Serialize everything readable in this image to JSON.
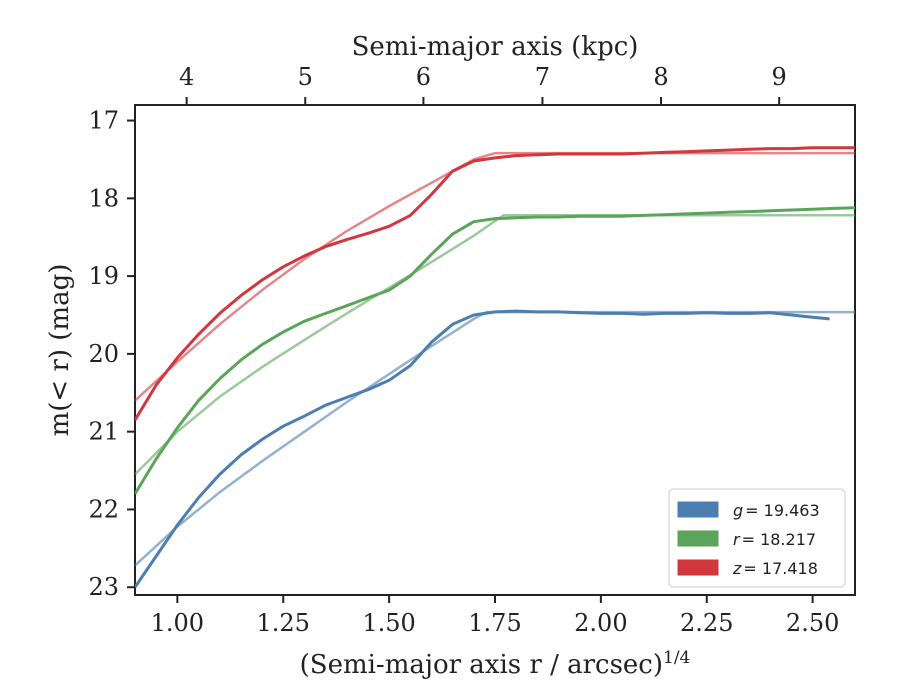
{
  "chart_data": {
    "type": "line",
    "xlabel_bottom": "(Semi-major axis r / arcsec)",
    "xlabel_bottom_exponent": "1/4",
    "xlabel_top": "Semi-major axis (kpc)",
    "ylabel": "m(< r) (mag)",
    "xlim": [
      0.9,
      2.6
    ],
    "ylim": [
      23.1,
      16.8
    ],
    "y_inverted": true,
    "grid": false,
    "legend_position": "lower-right",
    "x_ticks_bottom": [
      "1.00",
      "1.25",
      "1.50",
      "1.75",
      "2.00",
      "2.25",
      "2.50"
    ],
    "x_ticks_bottom_values": [
      1.0,
      1.25,
      1.5,
      1.75,
      2.0,
      2.25,
      2.5
    ],
    "x_ticks_top": [
      "4",
      "5",
      "6",
      "7",
      "8",
      "9"
    ],
    "x_ticks_top_values": [
      1.022,
      1.302,
      1.581,
      1.862,
      2.142,
      2.421
    ],
    "y_ticks": [
      "17",
      "18",
      "19",
      "20",
      "21",
      "22",
      "23"
    ],
    "y_ticks_values": [
      17,
      18,
      19,
      20,
      21,
      22,
      23
    ],
    "series": [
      {
        "name": "g = 19.463",
        "legend_var": "g",
        "legend_val": "= 19.463",
        "color": "#4C7FB0",
        "profile_x": [
          0.9,
          0.95,
          1.0,
          1.05,
          1.1,
          1.15,
          1.2,
          1.25,
          1.3,
          1.35,
          1.4,
          1.45,
          1.5,
          1.55,
          1.6,
          1.65,
          1.7,
          1.75,
          1.8,
          1.85,
          1.9,
          1.95,
          2.0,
          2.05,
          2.1,
          2.15,
          2.2,
          2.25,
          2.3,
          2.35,
          2.4,
          2.45,
          2.5,
          2.54
        ],
        "profile_y": [
          23.0,
          22.6,
          22.2,
          21.85,
          21.55,
          21.3,
          21.1,
          20.93,
          20.8,
          20.66,
          20.56,
          20.46,
          20.34,
          20.15,
          19.85,
          19.62,
          19.5,
          19.46,
          19.45,
          19.46,
          19.46,
          19.47,
          19.48,
          19.48,
          19.49,
          19.48,
          19.48,
          19.47,
          19.48,
          19.48,
          19.47,
          19.5,
          19.53,
          19.55
        ],
        "fit_x": [
          0.9,
          1.0,
          1.1,
          1.2,
          1.3,
          1.4,
          1.5,
          1.6,
          1.7,
          1.73,
          2.6
        ],
        "fit_y": [
          22.72,
          22.22,
          21.78,
          21.38,
          21.0,
          20.62,
          20.26,
          19.9,
          19.55,
          19.463,
          19.463
        ]
      },
      {
        "name": "r = 18.217",
        "legend_var": "r",
        "legend_val": "= 18.217",
        "color": "#5AA55A",
        "profile_x": [
          0.9,
          0.95,
          1.0,
          1.05,
          1.1,
          1.15,
          1.2,
          1.25,
          1.3,
          1.35,
          1.4,
          1.45,
          1.5,
          1.55,
          1.6,
          1.65,
          1.7,
          1.75,
          1.8,
          1.85,
          1.9,
          1.95,
          2.0,
          2.05,
          2.1,
          2.15,
          2.2,
          2.25,
          2.3,
          2.35,
          2.4,
          2.45,
          2.5,
          2.55,
          2.6
        ],
        "profile_y": [
          21.8,
          21.35,
          20.95,
          20.6,
          20.32,
          20.08,
          19.88,
          19.72,
          19.58,
          19.48,
          19.38,
          19.28,
          19.18,
          19.0,
          18.72,
          18.46,
          18.3,
          18.26,
          18.25,
          18.24,
          18.24,
          18.23,
          18.23,
          18.23,
          18.22,
          18.21,
          18.2,
          18.19,
          18.18,
          18.17,
          18.16,
          18.15,
          18.14,
          18.13,
          18.12
        ],
        "fit_x": [
          0.9,
          1.0,
          1.1,
          1.2,
          1.3,
          1.4,
          1.5,
          1.6,
          1.7,
          1.77,
          2.6
        ],
        "fit_y": [
          21.55,
          21.0,
          20.55,
          20.17,
          19.82,
          19.48,
          19.15,
          18.82,
          18.48,
          18.217,
          18.217
        ]
      },
      {
        "name": "z = 17.418",
        "legend_var": "z",
        "legend_val": "= 17.418",
        "color": "#D1373C",
        "profile_x": [
          0.9,
          0.95,
          1.0,
          1.05,
          1.1,
          1.15,
          1.2,
          1.25,
          1.3,
          1.35,
          1.4,
          1.45,
          1.5,
          1.55,
          1.6,
          1.65,
          1.7,
          1.75,
          1.8,
          1.85,
          1.9,
          1.95,
          2.0,
          2.05,
          2.1,
          2.15,
          2.2,
          2.25,
          2.3,
          2.35,
          2.4,
          2.45,
          2.5,
          2.55,
          2.6
        ],
        "profile_y": [
          20.85,
          20.4,
          20.05,
          19.75,
          19.48,
          19.25,
          19.05,
          18.88,
          18.74,
          18.62,
          18.53,
          18.45,
          18.36,
          18.22,
          17.95,
          17.65,
          17.52,
          17.48,
          17.45,
          17.44,
          17.43,
          17.43,
          17.43,
          17.43,
          17.42,
          17.41,
          17.4,
          17.39,
          17.38,
          17.37,
          17.36,
          17.36,
          17.35,
          17.35,
          17.35
        ],
        "fit_x": [
          0.9,
          1.0,
          1.1,
          1.2,
          1.3,
          1.4,
          1.5,
          1.6,
          1.7,
          1.75,
          2.6
        ],
        "fit_y": [
          20.6,
          20.1,
          19.62,
          19.18,
          18.78,
          18.42,
          18.1,
          17.8,
          17.5,
          17.418,
          17.418
        ]
      }
    ]
  }
}
